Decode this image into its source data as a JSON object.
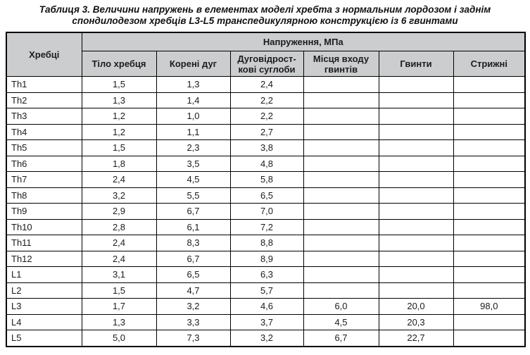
{
  "title": {
    "line1": "Таблиця 3. Величини напружень в елементах моделі хребта з нормальним лордозом і заднім",
    "line2": "спондилодезом хребців L3-L5 транспедикулярною конструкцією із 6 гвинтами"
  },
  "table": {
    "corner_header": "Хребці",
    "group_header": "Напруження, МПа",
    "sub_headers": [
      "Тіло хребця",
      "Корені дуг",
      "Дуговідрост-\nкові суглоби",
      "Місця входу\nгвинтів",
      "Гвинти",
      "Стрижні"
    ],
    "rows": [
      {
        "label": "Th1",
        "values": [
          "1,5",
          "1,3",
          "2,4",
          "",
          "",
          ""
        ]
      },
      {
        "label": "Th2",
        "values": [
          "1,3",
          "1,4",
          "2,2",
          "",
          "",
          ""
        ]
      },
      {
        "label": "Th3",
        "values": [
          "1,2",
          "1,0",
          "2,2",
          "",
          "",
          ""
        ]
      },
      {
        "label": "Th4",
        "values": [
          "1,2",
          "1,1",
          "2,7",
          "",
          "",
          ""
        ]
      },
      {
        "label": "Th5",
        "values": [
          "1,5",
          "2,3",
          "3,8",
          "",
          "",
          ""
        ]
      },
      {
        "label": "Th6",
        "values": [
          "1,8",
          "3,5",
          "4,8",
          "",
          "",
          ""
        ]
      },
      {
        "label": "Th7",
        "values": [
          "2,4",
          "4,5",
          "5,8",
          "",
          "",
          ""
        ]
      },
      {
        "label": "Th8",
        "values": [
          "3,2",
          "5,5",
          "6,5",
          "",
          "",
          ""
        ]
      },
      {
        "label": "Th9",
        "values": [
          "2,9",
          "6,7",
          "7,0",
          "",
          "",
          ""
        ]
      },
      {
        "label": "Th10",
        "values": [
          "2,8",
          "6,1",
          "7,2",
          "",
          "",
          ""
        ]
      },
      {
        "label": "Th11",
        "values": [
          "2,4",
          "8,3",
          "8,8",
          "",
          "",
          ""
        ]
      },
      {
        "label": "Th12",
        "values": [
          "2,4",
          "6,7",
          "8,9",
          "",
          "",
          ""
        ]
      },
      {
        "label": "L1",
        "values": [
          "3,1",
          "6,5",
          "6,3",
          "",
          "",
          ""
        ]
      },
      {
        "label": "L2",
        "values": [
          "1,5",
          "4,7",
          "5,7",
          "",
          "",
          ""
        ]
      },
      {
        "label": "L3",
        "values": [
          "1,7",
          "3,2",
          "4,6",
          "6,0",
          "20,0",
          "98,0"
        ]
      },
      {
        "label": "L4",
        "values": [
          "1,3",
          "3,3",
          "3,7",
          "4,5",
          "20,3",
          ""
        ]
      },
      {
        "label": "L5",
        "values": [
          "5,0",
          "7,3",
          "3,2",
          "6,7",
          "22,7",
          ""
        ]
      }
    ]
  },
  "colors": {
    "header_bg": "#cbcdce",
    "border": "#000000",
    "text": "#1c1c1c"
  }
}
